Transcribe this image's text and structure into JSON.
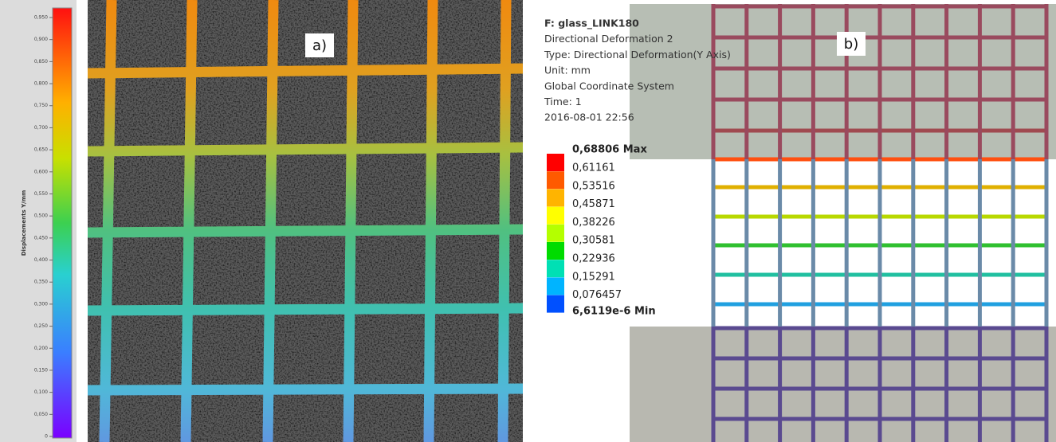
{
  "panel_a": {
    "label": "a)",
    "colorbar": {
      "title": "Displacements Y/mm",
      "ticks": [
        "0",
        "0,050",
        "0,100",
        "0,150",
        "0,200",
        "0,250",
        "0,300",
        "0,350",
        "0,400",
        "0,450",
        "0,500",
        "0,550",
        "0,600",
        "0,650",
        "0,700",
        "0,750",
        "0,800",
        "0,850",
        "0,900",
        "0,950"
      ]
    }
  },
  "panel_b": {
    "label": "b)",
    "header": [
      "F: glass_LINK180",
      "Directional Deformation 2",
      "Type: Directional Deformation(Y Axis)",
      "Unit: mm",
      "Global Coordinate System",
      "Time: 1",
      "2016-08-01 22:56"
    ],
    "legend": {
      "max": "0,68806 Max",
      "values": [
        "0,61161",
        "0,53516",
        "0,45871",
        "0,38226",
        "0,30581",
        "0,22936",
        "0,15291",
        "0,076457"
      ],
      "min": "6,6119e-6 Min"
    }
  }
}
